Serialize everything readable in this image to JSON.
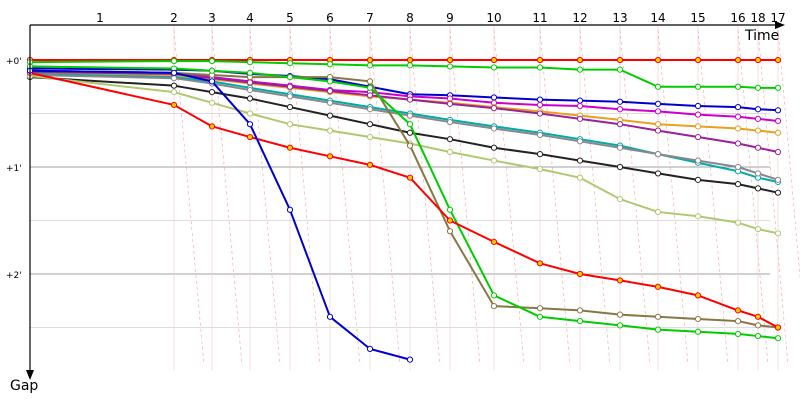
{
  "chart_data": {
    "type": "line",
    "title": "",
    "xlabel": "Time",
    "ylabel": "Gap",
    "x_tick_labels": [
      "1",
      "2",
      "3",
      "4",
      "5",
      "6",
      "7",
      "8",
      "9",
      "10",
      "11",
      "12",
      "13",
      "14",
      "15",
      "16",
      "18",
      "17"
    ],
    "y_tick_labels": [
      "+0'",
      "+1'",
      "+2'"
    ],
    "grid": true,
    "series": [
      {
        "color": "#ff0000",
        "values": [
          [
            0,
            0
          ],
          [
            1,
            0
          ],
          [
            2,
            0
          ],
          [
            3,
            0
          ],
          [
            4,
            0
          ],
          [
            5,
            0
          ],
          [
            6,
            0
          ],
          [
            7,
            0
          ],
          [
            8,
            0
          ],
          [
            9,
            0
          ],
          [
            10,
            0
          ],
          [
            11,
            0
          ],
          [
            12,
            0
          ],
          [
            13,
            0
          ],
          [
            14,
            0
          ],
          [
            15,
            0
          ],
          [
            16,
            0
          ],
          [
            17,
            0
          ]
        ]
      },
      {
        "color": "#00cc00",
        "values": [
          [
            0,
            0.02
          ],
          [
            1,
            0.01
          ],
          [
            2,
            0.01
          ],
          [
            3,
            0.02
          ],
          [
            4,
            0.03
          ],
          [
            5,
            0.04
          ],
          [
            6,
            0.05
          ],
          [
            7,
            0.05
          ],
          [
            8,
            0.06
          ],
          [
            9,
            0.07
          ],
          [
            10,
            0.07
          ],
          [
            11,
            0.09
          ],
          [
            12,
            0.09
          ],
          [
            13,
            0.25
          ],
          [
            14,
            0.25
          ],
          [
            15,
            0.25
          ],
          [
            16,
            0.26
          ],
          [
            17,
            0.26
          ]
        ]
      },
      {
        "color": "#0000cc",
        "values": [
          [
            0,
            0.08
          ],
          [
            1,
            0.09
          ],
          [
            2,
            0.1
          ],
          [
            3,
            0.13
          ],
          [
            4,
            0.15
          ],
          [
            5,
            0.18
          ],
          [
            6,
            0.25
          ],
          [
            7,
            0.32
          ],
          [
            8,
            0.33
          ],
          [
            9,
            0.35
          ],
          [
            10,
            0.37
          ],
          [
            11,
            0.38
          ],
          [
            12,
            0.39
          ],
          [
            13,
            0.41
          ],
          [
            14,
            0.43
          ],
          [
            15,
            0.44
          ],
          [
            16,
            0.46
          ],
          [
            17,
            0.47
          ]
        ]
      },
      {
        "color": "#cc00cc",
        "values": [
          [
            0,
            0.1
          ],
          [
            1,
            0.12
          ],
          [
            2,
            0.16
          ],
          [
            3,
            0.2
          ],
          [
            4,
            0.24
          ],
          [
            5,
            0.28
          ],
          [
            6,
            0.3
          ],
          [
            7,
            0.34
          ],
          [
            8,
            0.36
          ],
          [
            9,
            0.4
          ],
          [
            10,
            0.42
          ],
          [
            11,
            0.43
          ],
          [
            12,
            0.46
          ],
          [
            13,
            0.48
          ],
          [
            14,
            0.51
          ],
          [
            15,
            0.53
          ],
          [
            16,
            0.55
          ],
          [
            17,
            0.57
          ]
        ]
      },
      {
        "color": "#e8a020",
        "values": [
          [
            0,
            0.12
          ],
          [
            1,
            0.14
          ],
          [
            2,
            0.18
          ],
          [
            3,
            0.22
          ],
          [
            4,
            0.26
          ],
          [
            5,
            0.3
          ],
          [
            6,
            0.34
          ],
          [
            7,
            0.37
          ],
          [
            8,
            0.4
          ],
          [
            9,
            0.44
          ],
          [
            10,
            0.48
          ],
          [
            11,
            0.52
          ],
          [
            12,
            0.56
          ],
          [
            13,
            0.6
          ],
          [
            14,
            0.62
          ],
          [
            15,
            0.64
          ],
          [
            16,
            0.66
          ],
          [
            17,
            0.68
          ]
        ]
      },
      {
        "color": "#00aaaa",
        "values": [
          [
            0,
            0.13
          ],
          [
            1,
            0.16
          ],
          [
            2,
            0.2
          ],
          [
            3,
            0.26
          ],
          [
            4,
            0.32
          ],
          [
            5,
            0.38
          ],
          [
            6,
            0.44
          ],
          [
            7,
            0.5
          ],
          [
            8,
            0.56
          ],
          [
            9,
            0.62
          ],
          [
            10,
            0.68
          ],
          [
            11,
            0.74
          ],
          [
            12,
            0.8
          ],
          [
            13,
            0.88
          ],
          [
            14,
            0.96
          ],
          [
            15,
            1.04
          ],
          [
            16,
            1.1
          ],
          [
            17,
            1.14
          ]
        ]
      },
      {
        "color": "#992299",
        "values": [
          [
            0,
            0.11
          ],
          [
            1,
            0.13
          ],
          [
            2,
            0.17
          ],
          [
            3,
            0.21
          ],
          [
            4,
            0.25
          ],
          [
            5,
            0.29
          ],
          [
            6,
            0.33
          ],
          [
            7,
            0.37
          ],
          [
            8,
            0.41
          ],
          [
            9,
            0.45
          ],
          [
            10,
            0.5
          ],
          [
            11,
            0.55
          ],
          [
            12,
            0.6
          ],
          [
            13,
            0.66
          ],
          [
            14,
            0.72
          ],
          [
            15,
            0.78
          ],
          [
            16,
            0.82
          ],
          [
            17,
            0.86
          ]
        ]
      },
      {
        "color": "#222222",
        "values": [
          [
            0,
            0.16
          ],
          [
            1,
            0.24
          ],
          [
            2,
            0.3
          ],
          [
            3,
            0.36
          ],
          [
            4,
            0.44
          ],
          [
            5,
            0.52
          ],
          [
            6,
            0.6
          ],
          [
            7,
            0.68
          ],
          [
            8,
            0.74
          ],
          [
            9,
            0.82
          ],
          [
            10,
            0.88
          ],
          [
            11,
            0.94
          ],
          [
            12,
            1.0
          ],
          [
            13,
            1.06
          ],
          [
            14,
            1.12
          ],
          [
            15,
            1.16
          ],
          [
            16,
            1.2
          ],
          [
            17,
            1.24
          ]
        ]
      },
      {
        "color": "#888888",
        "values": [
          [
            0,
            0.14
          ],
          [
            1,
            0.17
          ],
          [
            2,
            0.22
          ],
          [
            3,
            0.28
          ],
          [
            4,
            0.34
          ],
          [
            5,
            0.4
          ],
          [
            6,
            0.46
          ],
          [
            7,
            0.52
          ],
          [
            8,
            0.58
          ],
          [
            9,
            0.64
          ],
          [
            10,
            0.7
          ],
          [
            11,
            0.76
          ],
          [
            12,
            0.82
          ],
          [
            13,
            0.88
          ],
          [
            14,
            0.94
          ],
          [
            15,
            1.0
          ],
          [
            16,
            1.06
          ],
          [
            17,
            1.12
          ]
        ]
      },
      {
        "color": "#b0c870",
        "values": [
          [
            0,
            0.15
          ],
          [
            1,
            0.3
          ],
          [
            2,
            0.4
          ],
          [
            3,
            0.5
          ],
          [
            4,
            0.6
          ],
          [
            5,
            0.66
          ],
          [
            6,
            0.72
          ],
          [
            7,
            0.78
          ],
          [
            8,
            0.86
          ],
          [
            9,
            0.94
          ],
          [
            10,
            1.02
          ],
          [
            11,
            1.1
          ],
          [
            12,
            1.3
          ],
          [
            13,
            1.42
          ],
          [
            14,
            1.46
          ],
          [
            15,
            1.52
          ],
          [
            16,
            1.58
          ],
          [
            17,
            1.62
          ]
        ]
      },
      {
        "color": "#887744",
        "values": [
          [
            0,
            0.1
          ],
          [
            1,
            0.12
          ],
          [
            2,
            0.14
          ],
          [
            3,
            0.16
          ],
          [
            4,
            0.16
          ],
          [
            5,
            0.16
          ],
          [
            6,
            0.2
          ],
          [
            7,
            0.8
          ],
          [
            8,
            1.6
          ],
          [
            9,
            2.3
          ],
          [
            10,
            2.32
          ],
          [
            11,
            2.34
          ],
          [
            12,
            2.38
          ],
          [
            13,
            2.4
          ],
          [
            14,
            2.42
          ],
          [
            15,
            2.44
          ],
          [
            16,
            2.48
          ],
          [
            17,
            2.5
          ]
        ]
      },
      {
        "color": "#00cc00",
        "values": [
          [
            0,
            0.06
          ],
          [
            1,
            0.08
          ],
          [
            2,
            0.1
          ],
          [
            3,
            0.12
          ],
          [
            4,
            0.16
          ],
          [
            5,
            0.2
          ],
          [
            6,
            0.26
          ],
          [
            7,
            0.6
          ],
          [
            8,
            1.4
          ],
          [
            9,
            2.2
          ],
          [
            10,
            2.4
          ],
          [
            11,
            2.44
          ],
          [
            12,
            2.48
          ],
          [
            13,
            2.52
          ],
          [
            14,
            2.54
          ],
          [
            15,
            2.56
          ],
          [
            16,
            2.58
          ],
          [
            17,
            2.6
          ]
        ]
      },
      {
        "color": "#ff0000",
        "values": [
          [
            0,
            0.12
          ],
          [
            1,
            0.42
          ],
          [
            2,
            0.62
          ],
          [
            3,
            0.72
          ],
          [
            4,
            0.82
          ],
          [
            5,
            0.9
          ],
          [
            6,
            0.98
          ],
          [
            7,
            1.1
          ],
          [
            8,
            1.5
          ],
          [
            9,
            1.7
          ],
          [
            10,
            1.9
          ],
          [
            11,
            2.0
          ],
          [
            12,
            2.06
          ],
          [
            13,
            2.12
          ],
          [
            14,
            2.2
          ],
          [
            15,
            2.34
          ],
          [
            16,
            2.4
          ],
          [
            17,
            2.5
          ]
        ]
      },
      {
        "color": "#0000cc",
        "values": [
          [
            0,
            0.1
          ],
          [
            1,
            0.12
          ],
          [
            2,
            0.2
          ],
          [
            3,
            0.6
          ],
          [
            4,
            1.4
          ],
          [
            5,
            2.4
          ],
          [
            6,
            2.7
          ],
          [
            7,
            2.8
          ]
        ]
      }
    ]
  }
}
